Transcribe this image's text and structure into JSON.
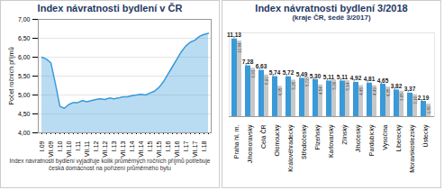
{
  "chart_data": [
    {
      "type": "area",
      "title": "Index návratnosti bydlení v ČR",
      "ylabel": "Počet ročních příjmů",
      "caption": "Index návratnosti bydlení vyjadřuje kolik průměrných ročních příjmů potřebuje česká domácnost na pořízení průměrného bytu",
      "categories": [
        "I.09",
        null,
        "VII.09",
        null,
        "I.10",
        null,
        "VII.10",
        null,
        "I.11",
        null,
        "VII.11",
        null,
        "I.12",
        null,
        "VII.12",
        null,
        "I.13",
        null,
        "VII.13",
        null,
        "I.14",
        null,
        "VII.14",
        null,
        "I.15",
        null,
        "VII.15",
        null,
        "I.16",
        null,
        "VII.16",
        null,
        "I.17",
        null,
        "VII.17",
        null,
        "I.18",
        null
      ],
      "values": [
        6.0,
        5.95,
        5.85,
        5.3,
        4.7,
        4.65,
        4.75,
        4.8,
        4.8,
        4.85,
        4.82,
        4.85,
        4.88,
        4.9,
        4.88,
        4.92,
        4.9,
        4.92,
        4.95,
        4.95,
        4.98,
        5.0,
        5.02,
        5.0,
        5.05,
        5.1,
        5.2,
        5.35,
        5.55,
        5.75,
        5.95,
        6.15,
        6.3,
        6.4,
        6.45,
        6.55,
        6.6,
        6.63
      ],
      "color": "#3a9ad9",
      "ylim": [
        4,
        7
      ],
      "yticks": [
        {
          "value": 4,
          "label": "4,00"
        },
        {
          "value": 4.5,
          "label": "4,50"
        },
        {
          "value": 5,
          "label": "5,00"
        },
        {
          "value": 5.5,
          "label": "5,50"
        },
        {
          "value": 6,
          "label": "6,00"
        },
        {
          "value": 6.5,
          "label": "6,50"
        },
        {
          "value": 7,
          "label": "7,00"
        }
      ],
      "grid": true
    },
    {
      "type": "bar",
      "title": "Index návratnosti bydlení 3/2018",
      "subtitle": "(kraje ČR, šedě 3/2017)",
      "categories": [
        "Praha hl. m.",
        "Jihomoravský",
        "Celá ČR",
        "Olomoucký",
        "Královéhradecký",
        "Středočeský",
        "Plzeňský",
        "Karlovarský",
        "Zlínský",
        "Jihočeský",
        "Pardubický",
        "Vysočina",
        "Liberecký",
        "Moravskoslezský",
        "Ústecký"
      ],
      "series": [
        {
          "name": "3/2018",
          "color": "#3a9ad9",
          "values": [
            11.13,
            7.28,
            6.63,
            5.74,
            5.72,
            5.49,
            5.3,
            5.11,
            5.11,
            4.92,
            4.81,
            4.65,
            3.82,
            3.37,
            2.19
          ],
          "value_labels": [
            "11,13",
            "7,28",
            "6,63",
            "5,74",
            "5,72",
            "5,49",
            "5,30",
            "5,11",
            "5,11",
            "4,92",
            "4,81",
            "4,65",
            "3,82",
            "3,37",
            "2,19"
          ]
        },
        {
          "name": "3/2017",
          "color": "#c8c8c8",
          "values": [
            10.84,
            6.93,
            5.97,
            4.35,
            5.25,
            5.72,
            4.54,
            5.26,
            5.14,
            4.45,
            4.43,
            4.25,
            3.65,
            3.16,
            1.8
          ],
          "value_labels": [
            "10,84",
            "6,93",
            "5,97",
            "4,35",
            "5,25",
            "5,72",
            "4,54",
            "5,26",
            "5,14",
            "4,45",
            "4,43",
            "4,25",
            "3,65",
            "3,16",
            "1,80"
          ]
        }
      ],
      "ylim": [
        0,
        12
      ],
      "yticks": [],
      "tick_labels": "x",
      "data_labels": true
    }
  ]
}
